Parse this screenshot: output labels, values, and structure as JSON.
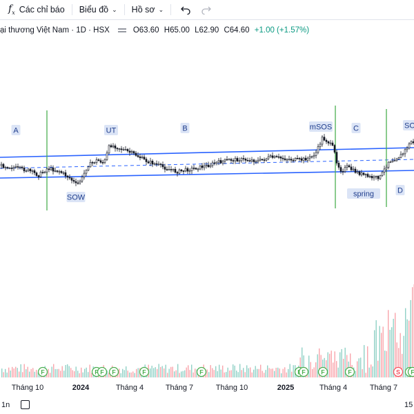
{
  "toolbar": {
    "indicators_icon": "fx-icon",
    "indicators_label": "Các chỉ báo",
    "chart_type_label": "Biểu đồ",
    "profile_label": "Hồ sơ",
    "undo_icon": "undo-icon",
    "redo_icon": "redo-icon"
  },
  "legend": {
    "symbol_title": "ại thương Việt Nam · 1D · HSX",
    "open": "O63.60",
    "high": "H65.00",
    "low": "L62.90",
    "close": "C64.60",
    "change": "+1.00 (+1.57%)"
  },
  "annotations": {
    "a": "A",
    "ut": "UT",
    "b": "B",
    "msos": "mSOS",
    "c": "C",
    "sos": "SO",
    "sow": "SOW",
    "spring": "spring",
    "d": "D"
  },
  "x_axis": {
    "ticks": [
      "Tháng 10",
      "2024",
      "Tháng 4",
      "Tháng 7",
      "Tháng 10",
      "2025",
      "Tháng 4",
      "Tháng 7"
    ]
  },
  "event_markers": [
    "F",
    "F",
    "F",
    "F",
    "F",
    "F",
    "F",
    "F",
    "F",
    "F",
    "S",
    "F",
    "F"
  ],
  "bottom_bar": {
    "interval_label": "1n",
    "time_text": "15"
  },
  "colors": {
    "up": "#089981",
    "down": "#f23645",
    "channel": "#2962ff",
    "phase_line": "#4caf50",
    "label_bg": "#dbe4f6",
    "label_text": "#1e3c8c"
  }
}
